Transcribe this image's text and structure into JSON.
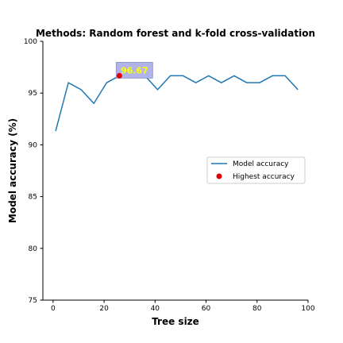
{
  "chart_data": {
    "type": "line",
    "title": "Methods: Random forest and k-fold cross-validation",
    "xlabel": "Tree size",
    "ylabel": "Model accuracy (%)",
    "xlim": [
      -4,
      100
    ],
    "ylim": [
      75,
      100
    ],
    "xticks": [
      0,
      20,
      40,
      60,
      80,
      100
    ],
    "yticks": [
      75,
      80,
      85,
      90,
      95,
      100
    ],
    "grid": false,
    "legend_position": "center-right",
    "series": [
      {
        "name": "Model accuracy",
        "color": "#1f77b4",
        "x": [
          1,
          6,
          11,
          16,
          21,
          26,
          31,
          36,
          41,
          46,
          51,
          56,
          61,
          66,
          71,
          76,
          81,
          86,
          91,
          96
        ],
        "y": [
          91.33,
          96.0,
          95.33,
          94.0,
          96.0,
          96.67,
          96.67,
          96.67,
          95.33,
          96.67,
          96.67,
          96.0,
          96.67,
          96.0,
          96.67,
          96.0,
          96.0,
          96.67,
          96.67,
          95.33
        ]
      }
    ],
    "highlight": {
      "name": "Highest accuracy",
      "color": "#e00000",
      "x": 26,
      "y": 96.67,
      "label": "96.67",
      "label_color": "#ffff00",
      "box_color": "#b0b4e8"
    }
  }
}
